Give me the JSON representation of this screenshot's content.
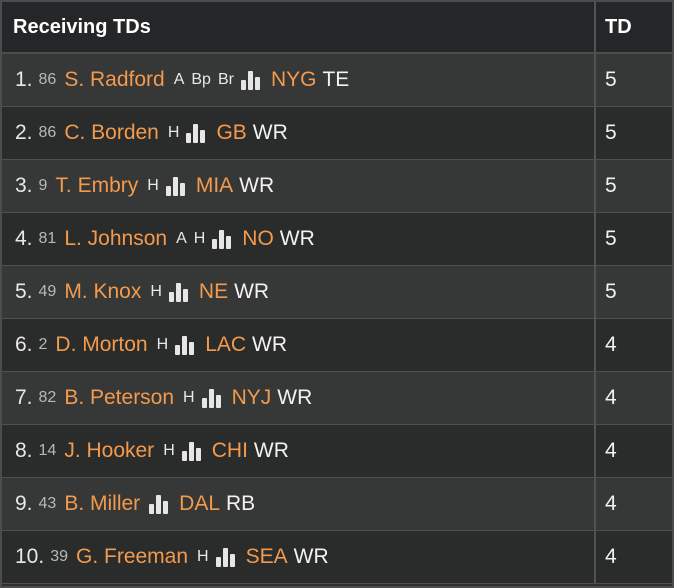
{
  "header": {
    "title": "Receiving TDs",
    "td_label": "TD"
  },
  "rows": [
    {
      "rank": "1.",
      "jersey": "86",
      "name": "S. Radford",
      "badges": [
        "A",
        "Bp",
        "Br"
      ],
      "team": "NYG",
      "pos": "TE",
      "td": "5"
    },
    {
      "rank": "2.",
      "jersey": "86",
      "name": "C. Borden",
      "badges": [
        "H"
      ],
      "team": "GB",
      "pos": "WR",
      "td": "5"
    },
    {
      "rank": "3.",
      "jersey": "9",
      "name": "T. Embry",
      "badges": [
        "H"
      ],
      "team": "MIA",
      "pos": "WR",
      "td": "5"
    },
    {
      "rank": "4.",
      "jersey": "81",
      "name": "L. Johnson",
      "badges": [
        "A",
        "H"
      ],
      "team": "NO",
      "pos": "WR",
      "td": "5"
    },
    {
      "rank": "5.",
      "jersey": "49",
      "name": "M. Knox",
      "badges": [
        "H"
      ],
      "team": "NE",
      "pos": "WR",
      "td": "5"
    },
    {
      "rank": "6.",
      "jersey": "2",
      "name": "D. Morton",
      "badges": [
        "H"
      ],
      "team": "LAC",
      "pos": "WR",
      "td": "4"
    },
    {
      "rank": "7.",
      "jersey": "82",
      "name": "B. Peterson",
      "badges": [
        "H"
      ],
      "team": "NYJ",
      "pos": "WR",
      "td": "4"
    },
    {
      "rank": "8.",
      "jersey": "14",
      "name": "J. Hooker",
      "badges": [
        "H"
      ],
      "team": "CHI",
      "pos": "WR",
      "td": "4"
    },
    {
      "rank": "9.",
      "jersey": "43",
      "name": "B. Miller",
      "badges": [],
      "team": "DAL",
      "pos": "RB",
      "td": "4"
    },
    {
      "rank": "10.",
      "jersey": "39",
      "name": "G. Freeman",
      "badges": [
        "H"
      ],
      "team": "SEA",
      "pos": "WR",
      "td": "4"
    }
  ],
  "icons": {
    "stats": "bar-chart-icon"
  },
  "colors": {
    "accent": "#f39a4d",
    "background": "#2f3030",
    "header": "#252627"
  }
}
